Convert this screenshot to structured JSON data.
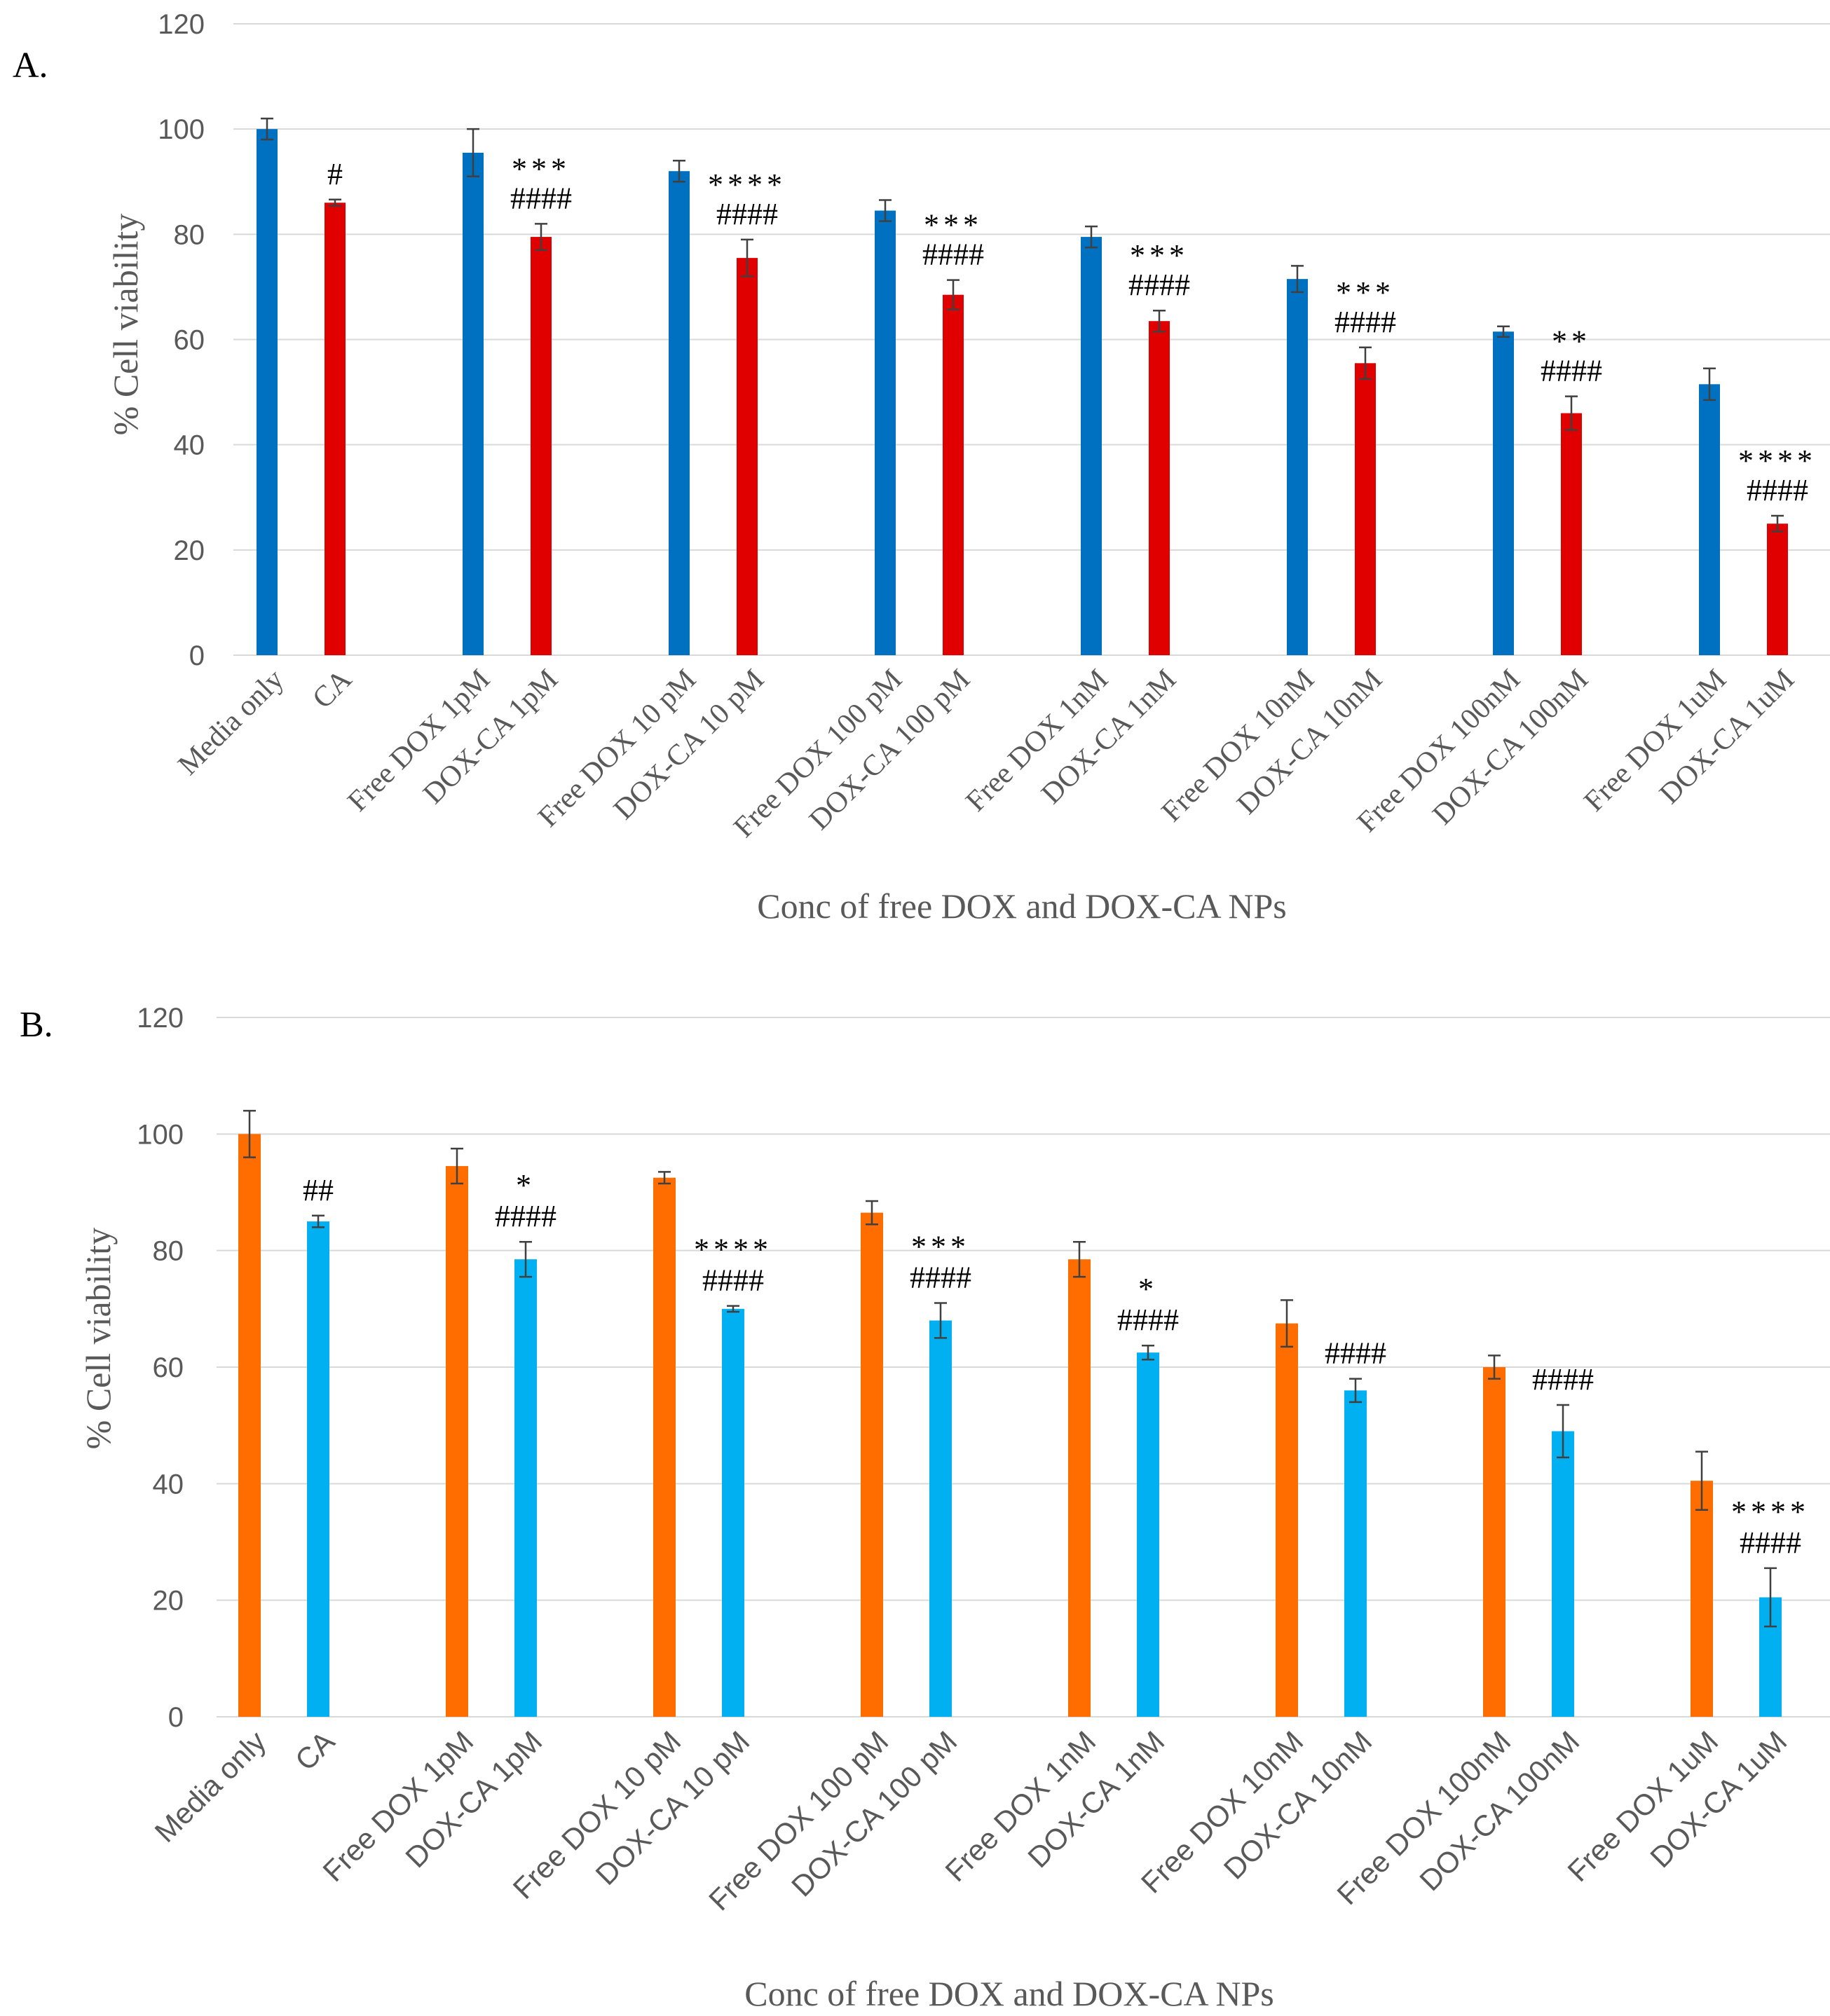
{
  "chart_data": [
    {
      "panel_label": "A.",
      "type": "bar",
      "ylabel": "% Cell viability",
      "xlabel": "Conc of free DOX and DOX-CA NPs",
      "ylim": [
        0,
        120
      ],
      "yticks": [
        0,
        20,
        40,
        60,
        80,
        100,
        120
      ],
      "grid": true,
      "colors": {
        "free": "#0070C0",
        "ca": "#E00000"
      },
      "categories": [
        "Media only",
        "CA",
        "Free DOX 1pM",
        "DOX-CA 1pM",
        "Free DOX 10 pM",
        "DOX-CA 10 pM",
        "Free DOX 100 pM",
        "DOX-CA 100 pM",
        "Free DOX 1nM",
        "DOX-CA 1nM",
        "Free DOX 10nM",
        "DOX-CA 10nM",
        "Free DOX 100nM",
        "DOX-CA 100nM",
        "Free DOX 1uM",
        "DOX-CA 1uM"
      ],
      "values": [
        100,
        86,
        95.5,
        79.5,
        92,
        75.5,
        84.5,
        68.5,
        79.5,
        63.5,
        71.5,
        55.5,
        61.5,
        46,
        51.5,
        25
      ],
      "errors": [
        2,
        0.6,
        4.5,
        2.5,
        2,
        3.5,
        2,
        2.8,
        2,
        2,
        2.5,
        3,
        1,
        3.2,
        3,
        1.5
      ],
      "annotations": [
        {
          "index": 1,
          "lines": [
            "#"
          ]
        },
        {
          "index": 3,
          "lines": [
            "***",
            "####"
          ]
        },
        {
          "index": 5,
          "lines": [
            "****",
            "####"
          ]
        },
        {
          "index": 7,
          "lines": [
            "***",
            "####"
          ]
        },
        {
          "index": 9,
          "lines": [
            "***",
            "####"
          ]
        },
        {
          "index": 11,
          "lines": [
            "***",
            "####"
          ]
        },
        {
          "index": 13,
          "lines": [
            "**",
            "####"
          ]
        },
        {
          "index": 15,
          "lines": [
            "****",
            "####"
          ]
        }
      ]
    },
    {
      "panel_label": "B.",
      "type": "bar",
      "ylabel": "% Cell viability",
      "xlabel": "Conc of free DOX and DOX-CA NPs",
      "ylim": [
        0,
        120
      ],
      "yticks": [
        0,
        20,
        40,
        60,
        80,
        100,
        120
      ],
      "grid": true,
      "colors": {
        "free": "#FF6D00",
        "ca": "#00B0F0"
      },
      "categories": [
        "Media only",
        "CA",
        "Free DOX 1pM",
        "DOX-CA 1pM",
        "Free DOX 10 pM",
        "DOX-CA 10 pM",
        "Free DOX 100 pM",
        "DOX-CA 100 pM",
        "Free DOX 1nM",
        "DOX-CA 1nM",
        "Free DOX 10nM",
        "DOX-CA 10nM",
        "Free DOX 100nM",
        "DOX-CA 100nM",
        "Free DOX 1uM",
        "DOX-CA 1uM"
      ],
      "values": [
        100,
        85,
        94.5,
        78.5,
        92.5,
        70,
        86.5,
        68,
        78.5,
        62.5,
        67.5,
        56,
        60,
        49,
        40.5,
        20.5
      ],
      "errors": [
        4,
        1,
        3,
        3,
        1,
        0.5,
        2,
        3,
        3,
        1.2,
        4,
        2,
        2,
        4.5,
        5,
        5
      ],
      "annotations": [
        {
          "index": 1,
          "lines": [
            "##"
          ]
        },
        {
          "index": 3,
          "lines": [
            "*",
            "####"
          ]
        },
        {
          "index": 5,
          "lines": [
            "****",
            "####"
          ]
        },
        {
          "index": 7,
          "lines": [
            "***",
            "####"
          ]
        },
        {
          "index": 9,
          "lines": [
            "*",
            "####"
          ]
        },
        {
          "index": 11,
          "lines": [
            "####"
          ]
        },
        {
          "index": 13,
          "lines": [
            "####"
          ]
        },
        {
          "index": 15,
          "lines": [
            "****",
            "####"
          ]
        }
      ]
    }
  ]
}
